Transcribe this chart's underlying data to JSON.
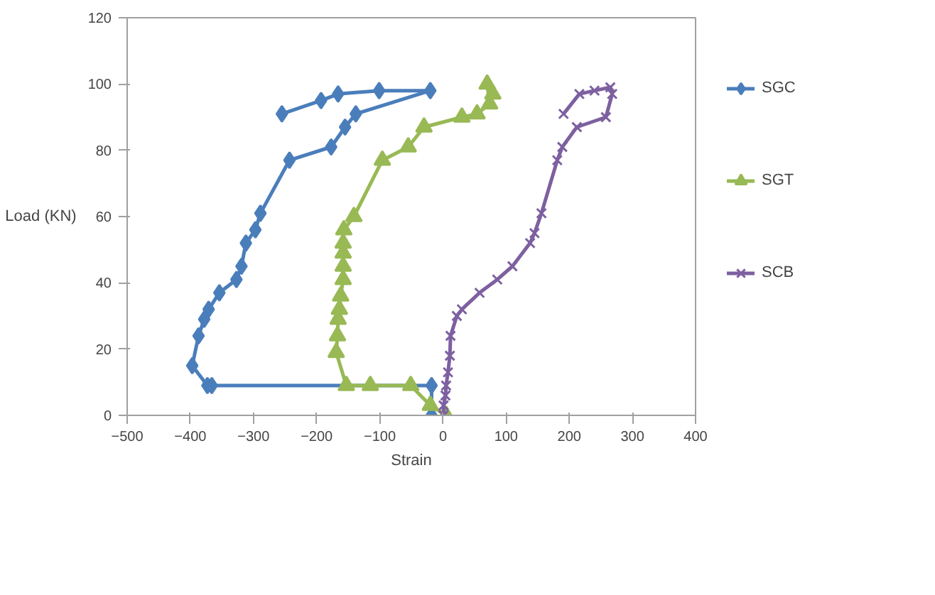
{
  "chart_data": {
    "type": "line",
    "xlabel": "Strain",
    "ylabel": "Load (KN)",
    "xlim": [
      -500,
      400
    ],
    "xticks": [
      -500,
      -400,
      -300,
      -200,
      -100,
      0,
      100,
      200,
      300,
      400
    ],
    "ylim": [
      0,
      120
    ],
    "yticks": [
      0,
      20,
      40,
      60,
      80,
      100,
      120
    ],
    "grid": false,
    "legend": "right",
    "series": [
      {
        "name": "SGC",
        "color": "#4a7ebb",
        "marker": "diamond",
        "x": [
          -18,
          -18,
          -366,
          -373,
          -397,
          -387,
          -378,
          -371,
          -354,
          -327,
          -319,
          -312,
          -297,
          -289,
          -243,
          -177,
          -155,
          -138,
          -20,
          -101,
          -166,
          -193,
          -255
        ],
        "values": [
          0,
          9,
          9,
          9,
          15,
          24,
          29,
          32,
          37,
          41,
          45,
          52,
          56,
          61,
          77,
          81,
          87,
          91,
          98,
          98,
          97,
          95,
          91
        ]
      },
      {
        "name": "SGT",
        "color": "#98b954",
        "marker": "triangle",
        "x": [
          5,
          -20,
          -51,
          -115,
          -153,
          -169,
          -167,
          -166,
          -164,
          -162,
          -158,
          -158,
          -158,
          -158,
          -157,
          -141,
          -96,
          -55,
          -30,
          30,
          54,
          74,
          70,
          79
        ],
        "values": [
          0,
          3,
          9,
          9,
          9,
          19,
          24,
          29,
          32,
          36,
          41,
          45,
          49,
          52,
          56,
          60,
          77,
          81,
          87,
          90,
          91,
          94,
          100,
          97
        ]
      },
      {
        "name": "SCB",
        "color": "#7d60a0",
        "marker": "cross",
        "x": [
          1,
          1,
          4,
          5,
          8,
          11,
          12,
          22,
          30,
          58,
          86,
          110,
          138,
          145,
          156,
          181,
          189,
          212,
          258,
          268,
          265,
          240,
          216,
          191
        ],
        "values": [
          0,
          3,
          6,
          9,
          13,
          18,
          24,
          30,
          32,
          37,
          41,
          45,
          52,
          55,
          61,
          77,
          81,
          87,
          90,
          97,
          99,
          98,
          97,
          91
        ]
      }
    ]
  }
}
